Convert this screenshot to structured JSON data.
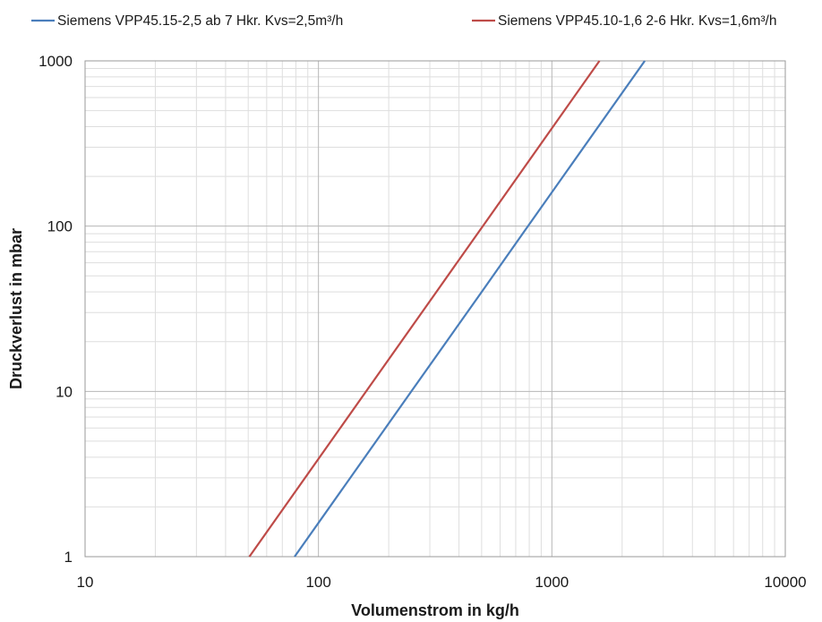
{
  "chart_data": {
    "type": "line",
    "xscale": "log",
    "yscale": "log",
    "xlim": [
      10,
      10000
    ],
    "ylim": [
      1,
      1000
    ],
    "x_ticks": [
      "10",
      "100",
      "1000",
      "10000"
    ],
    "y_ticks": [
      "1",
      "10",
      "100",
      "1000"
    ],
    "xlabel": "Volumenstrom in kg/h",
    "ylabel": "Druckverlust in mbar",
    "grid": true,
    "legend_position": "top",
    "series": [
      {
        "name": "Siemens VPP45.15-2,5 ab 7 Hkr. Kvs=2,5m³/h",
        "color": "#4a7ebb",
        "x": [
          79,
          250,
          500,
          790,
          2500
        ],
        "y": [
          1,
          10,
          40,
          100,
          1000
        ]
      },
      {
        "name": "Siemens VPP45.10-1,6 2-6 Hkr. Kvs=1,6m³/h",
        "color": "#be4b48",
        "x": [
          50.6,
          160,
          320,
          506,
          1600
        ],
        "y": [
          1,
          10,
          40,
          100,
          1000
        ]
      }
    ]
  }
}
